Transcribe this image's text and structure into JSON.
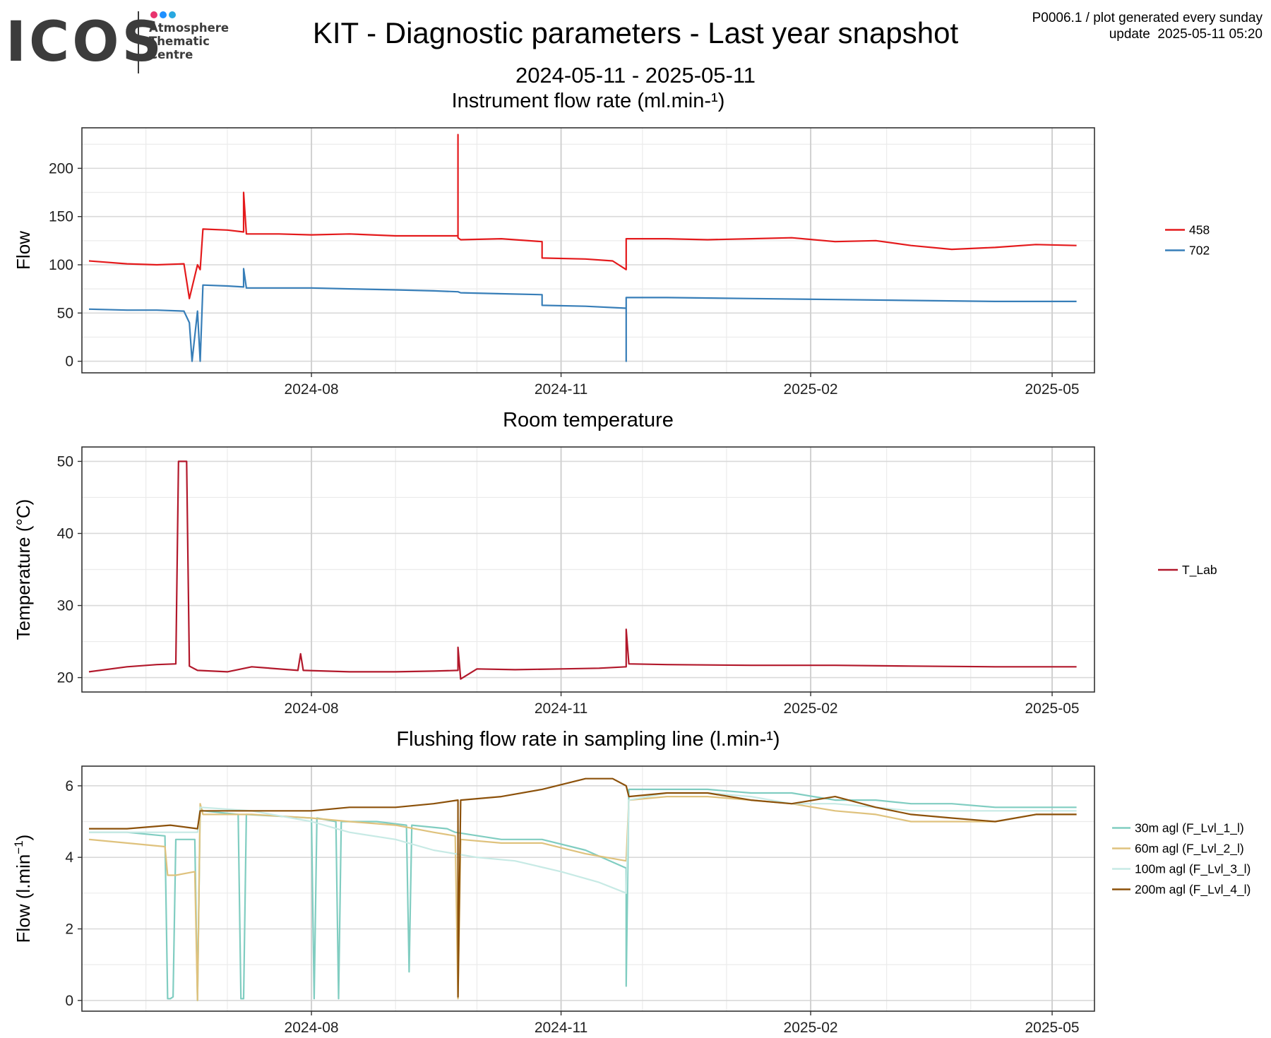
{
  "header": {
    "logo": {
      "word": "ICOS",
      "lines": [
        "Atmosphere",
        "Thematic",
        "Centre"
      ],
      "dot_colors": [
        "#e8336e",
        "#1e90ff",
        "#29a8e0"
      ]
    },
    "title": "KIT - Diagnostic parameters - Last year snapshot",
    "subtitle": "2024-05-11 - 2025-05-11",
    "meta_line1": "P0006.1 / plot generated every sunday",
    "meta_line2": "update  2025-05-11 05:20"
  },
  "chart_data": [
    {
      "type": "line",
      "title": "Instrument flow rate (ml.min-¹)",
      "ylabel": "Flow",
      "xlabel": "",
      "xlim": [
        "2024-05-11",
        "2025-05-11"
      ],
      "ylim": [
        -12,
        242
      ],
      "yticks": [
        0,
        50,
        100,
        150,
        200
      ],
      "xticks": [
        "2024-08",
        "2024-11",
        "2025-02",
        "2025-05"
      ],
      "grid": true,
      "legend": "right",
      "series": [
        {
          "name": "458",
          "color": "#e41a1c",
          "x": [
            "2024-05-11",
            "2024-05-25",
            "2024-06-05",
            "2024-06-15",
            "2024-06-17",
            "2024-06-20",
            "2024-06-21",
            "2024-06-22",
            "2024-07-01",
            "2024-07-07",
            "2024-07-07",
            "2024-07-08",
            "2024-07-20",
            "2024-08-01",
            "2024-08-15",
            "2024-09-01",
            "2024-09-15",
            "2024-09-24",
            "2024-09-24",
            "2024-09-24",
            "2024-09-25",
            "2024-10-10",
            "2024-10-25",
            "2024-10-25",
            "2024-11-10",
            "2024-11-20",
            "2024-11-25",
            "2024-11-25",
            "2024-12-10",
            "2024-12-25",
            "2025-01-10",
            "2025-01-25",
            "2025-02-10",
            "2025-02-25",
            "2025-03-10",
            "2025-03-25",
            "2025-04-10",
            "2025-04-25",
            "2025-05-10"
          ],
          "y": [
            104,
            101,
            100,
            101,
            65,
            100,
            95,
            137,
            136,
            134,
            175,
            132,
            132,
            131,
            132,
            130,
            130,
            130,
            235,
            128,
            126,
            127,
            124,
            107,
            106,
            104,
            95,
            127,
            127,
            126,
            127,
            128,
            124,
            125,
            120,
            116,
            118,
            121,
            120
          ]
        },
        {
          "name": "702",
          "color": "#377eb8",
          "x": [
            "2024-05-11",
            "2024-05-25",
            "2024-06-05",
            "2024-06-15",
            "2024-06-17",
            "2024-06-18",
            "2024-06-20",
            "2024-06-21",
            "2024-06-22",
            "2024-07-01",
            "2024-07-07",
            "2024-07-07",
            "2024-07-08",
            "2024-07-20",
            "2024-08-01",
            "2024-08-15",
            "2024-09-01",
            "2024-09-15",
            "2024-09-24",
            "2024-09-25",
            "2024-10-10",
            "2024-10-25",
            "2024-10-25",
            "2024-11-10",
            "2024-11-25",
            "2024-11-25",
            "2024-11-25",
            "2024-12-10",
            "2025-01-10",
            "2025-02-10",
            "2025-03-10",
            "2025-04-10",
            "2025-05-10"
          ],
          "y": [
            54,
            53,
            53,
            52,
            40,
            0,
            52,
            0,
            79,
            78,
            77,
            96,
            76,
            76,
            76,
            75,
            74,
            73,
            72,
            71,
            70,
            69,
            58,
            57,
            55,
            0,
            66,
            66,
            65,
            64,
            63,
            62,
            62
          ]
        }
      ]
    },
    {
      "type": "line",
      "title": "Room temperature",
      "ylabel": "Temperature (°C)",
      "xlabel": "",
      "xlim": [
        "2024-05-11",
        "2025-05-11"
      ],
      "ylim": [
        18,
        52
      ],
      "yticks": [
        20,
        30,
        40,
        50
      ],
      "xticks": [
        "2024-08",
        "2024-11",
        "2025-02",
        "2025-05"
      ],
      "grid": true,
      "legend": "right",
      "series": [
        {
          "name": "T_Lab",
          "color": "#b2182b",
          "x": [
            "2024-05-11",
            "2024-05-25",
            "2024-06-05",
            "2024-06-12",
            "2024-06-13",
            "2024-06-16",
            "2024-06-17",
            "2024-06-20",
            "2024-07-01",
            "2024-07-10",
            "2024-07-27",
            "2024-07-28",
            "2024-07-29",
            "2024-08-15",
            "2024-09-01",
            "2024-09-15",
            "2024-09-24",
            "2024-09-24",
            "2024-09-25",
            "2024-10-01",
            "2024-10-15",
            "2024-11-01",
            "2024-11-15",
            "2024-11-25",
            "2024-11-25",
            "2024-11-26",
            "2024-12-10",
            "2025-01-10",
            "2025-02-10",
            "2025-03-10",
            "2025-04-10",
            "2025-05-10"
          ],
          "y": [
            20.8,
            21.5,
            21.8,
            21.9,
            50,
            50,
            21.6,
            21.0,
            20.8,
            21.5,
            21.0,
            23.3,
            21.0,
            20.8,
            20.8,
            20.9,
            21,
            24.2,
            19.8,
            21.2,
            21.1,
            21.2,
            21.3,
            21.5,
            26.7,
            21.9,
            21.8,
            21.7,
            21.7,
            21.6,
            21.5,
            21.5
          ]
        }
      ]
    },
    {
      "type": "line",
      "title": "Flushing flow rate in sampling line (l.min-¹)",
      "ylabel": "Flow (l.min",
      "ylabel_sup": "−1",
      "ylabel_end": ")",
      "xlabel": "",
      "xlim": [
        "2024-05-11",
        "2025-05-11"
      ],
      "ylim": [
        -0.3,
        6.55
      ],
      "yticks": [
        0,
        2,
        4,
        6
      ],
      "xticks": [
        "2024-08",
        "2024-11",
        "2025-02",
        "2025-05"
      ],
      "grid": true,
      "legend": "right",
      "series": [
        {
          "name": "30m agl (F_Lvl_1_l)",
          "color": "#80cdc1",
          "x": [
            "2024-05-11",
            "2024-05-25",
            "2024-06-08",
            "2024-06-09",
            "2024-06-10",
            "2024-06-11",
            "2024-06-12",
            "2024-06-19",
            "2024-06-20",
            "2024-06-21",
            "2024-06-22",
            "2024-07-05",
            "2024-07-06",
            "2024-07-07",
            "2024-07-08",
            "2024-08-01",
            "2024-08-02",
            "2024-08-03",
            "2024-08-10",
            "2024-08-11",
            "2024-08-12",
            "2024-08-25",
            "2024-09-05",
            "2024-09-06",
            "2024-09-07",
            "2024-09-20",
            "2024-09-23",
            "2024-10-10",
            "2024-10-25",
            "2024-11-10",
            "2024-11-25",
            "2024-11-25",
            "2024-11-26",
            "2024-12-10",
            "2024-12-25",
            "2025-01-10",
            "2025-01-25",
            "2025-02-10",
            "2025-02-25",
            "2025-03-10",
            "2025-03-25",
            "2025-04-10",
            "2025-04-25",
            "2025-05-10"
          ],
          "y": [
            4.7,
            4.7,
            4.6,
            0.05,
            0.05,
            0.1,
            4.5,
            4.5,
            0,
            5.4,
            5.3,
            5.2,
            0.05,
            0.05,
            5.2,
            5.1,
            0.05,
            5.1,
            5.0,
            0.05,
            5.0,
            5.0,
            4.9,
            0.8,
            4.9,
            4.8,
            4.7,
            4.5,
            4.5,
            4.2,
            3.7,
            0.4,
            5.9,
            5.9,
            5.9,
            5.8,
            5.8,
            5.6,
            5.6,
            5.5,
            5.5,
            5.4,
            5.4,
            5.4
          ]
        },
        {
          "name": "60m agl (F_Lvl_2_l)",
          "color": "#dfc27d",
          "x": [
            "2024-05-11",
            "2024-05-25",
            "2024-06-08",
            "2024-06-09",
            "2024-06-12",
            "2024-06-19",
            "2024-06-20",
            "2024-06-21",
            "2024-06-22",
            "2024-07-10",
            "2024-08-01",
            "2024-08-15",
            "2024-09-01",
            "2024-09-15",
            "2024-09-23",
            "2024-09-24",
            "2024-09-25",
            "2024-10-10",
            "2024-10-25",
            "2024-11-10",
            "2024-11-25",
            "2024-11-26",
            "2024-12-10",
            "2024-12-25",
            "2025-01-10",
            "2025-01-25",
            "2025-02-10",
            "2025-02-25",
            "2025-03-10",
            "2025-03-25",
            "2025-04-10",
            "2025-04-25",
            "2025-05-10"
          ],
          "y": [
            4.5,
            4.4,
            4.3,
            3.5,
            3.5,
            3.6,
            0,
            5.5,
            5.2,
            5.2,
            5.1,
            5.0,
            4.9,
            4.7,
            4.6,
            0.05,
            4.5,
            4.4,
            4.4,
            4.1,
            3.9,
            5.6,
            5.7,
            5.7,
            5.6,
            5.5,
            5.3,
            5.2,
            5.0,
            5.0,
            5.0,
            5.2,
            5.2
          ]
        },
        {
          "name": "100m agl (F_Lvl_3_l)",
          "color": "#c7eae5",
          "x": [
            "2024-05-11",
            "2024-05-25",
            "2024-06-10",
            "2024-06-20",
            "2024-06-21",
            "2024-07-10",
            "2024-08-01",
            "2024-08-15",
            "2024-09-01",
            "2024-09-15",
            "2024-10-01",
            "2024-10-15",
            "2024-11-01",
            "2024-11-15",
            "2024-11-25",
            "2024-11-26",
            "2024-12-10",
            "2024-12-25",
            "2025-01-10",
            "2025-01-25",
            "2025-02-10",
            "2025-02-25",
            "2025-03-10",
            "2025-03-25",
            "2025-04-10",
            "2025-04-25",
            "2025-05-10"
          ],
          "y": [
            4.7,
            4.7,
            4.7,
            4.7,
            5.4,
            5.3,
            5.0,
            4.7,
            4.5,
            4.2,
            4.0,
            3.9,
            3.6,
            3.3,
            3.0,
            5.6,
            5.8,
            5.8,
            5.7,
            5.5,
            5.5,
            5.4,
            5.3,
            5.3,
            5.3,
            5.3,
            5.3
          ]
        },
        {
          "name": "200m agl (F_Lvl_4_l)",
          "color": "#8c510a",
          "x": [
            "2024-05-11",
            "2024-05-25",
            "2024-06-10",
            "2024-06-20",
            "2024-06-21",
            "2024-07-10",
            "2024-08-01",
            "2024-08-15",
            "2024-09-01",
            "2024-09-15",
            "2024-09-24",
            "2024-09-24",
            "2024-09-25",
            "2024-10-10",
            "2024-10-25",
            "2024-11-10",
            "2024-11-20",
            "2024-11-25",
            "2024-11-26",
            "2024-12-10",
            "2024-12-25",
            "2025-01-10",
            "2025-01-25",
            "2025-02-10",
            "2025-02-25",
            "2025-03-10",
            "2025-03-25",
            "2025-04-10",
            "2025-04-25",
            "2025-05-10"
          ],
          "y": [
            4.8,
            4.8,
            4.9,
            4.8,
            5.3,
            5.3,
            5.3,
            5.4,
            5.4,
            5.5,
            5.6,
            0.1,
            5.6,
            5.7,
            5.9,
            6.2,
            6.2,
            6.0,
            5.7,
            5.8,
            5.8,
            5.6,
            5.5,
            5.7,
            5.4,
            5.2,
            5.1,
            5.0,
            5.2,
            5.2
          ]
        }
      ]
    }
  ]
}
